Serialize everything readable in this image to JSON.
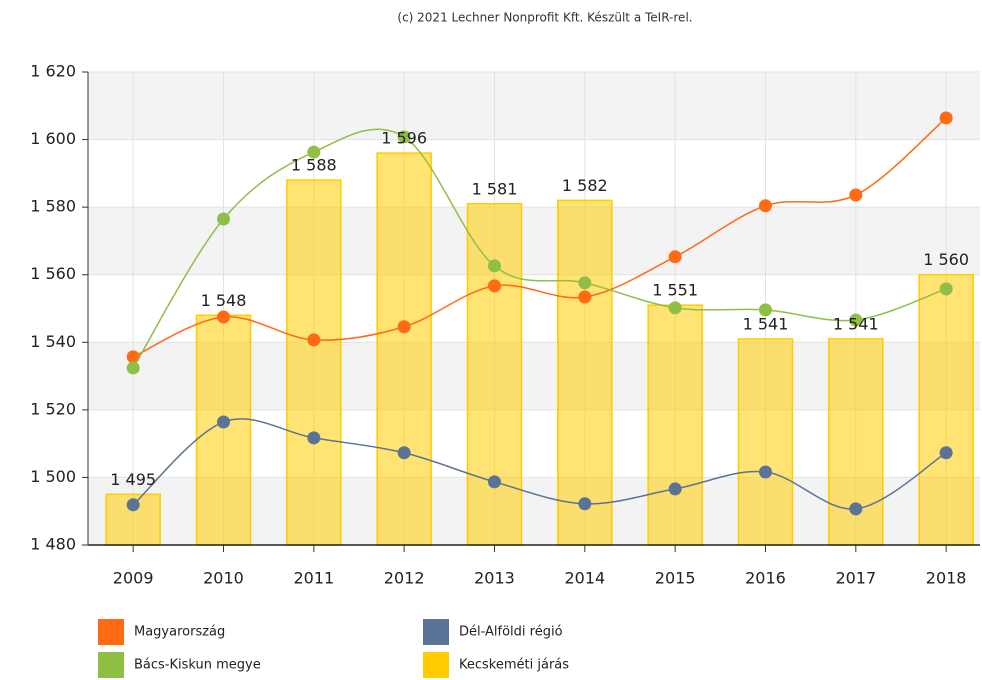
{
  "chart_data": {
    "type": "bar",
    "subtitle": "(c) 2021 Lechner Nonprofit Kft. Készült a TeIR-rel.",
    "categories": [
      "2009",
      "2010",
      "2011",
      "2012",
      "2013",
      "2014",
      "2015",
      "2016",
      "2017",
      "2018"
    ],
    "ylim": [
      1480,
      1620
    ],
    "yticks": [
      {
        "value": 1480,
        "label": "1 480"
      },
      {
        "value": 1500,
        "label": "1 500"
      },
      {
        "value": 1520,
        "label": "1 520"
      },
      {
        "value": 1540,
        "label": "1 540"
      },
      {
        "value": 1560,
        "label": "1 560"
      },
      {
        "value": 1580,
        "label": "1 580"
      },
      {
        "value": 1600,
        "label": "1 600"
      },
      {
        "value": 1620,
        "label": "1 620"
      }
    ],
    "grid": true,
    "legend": "bottom",
    "series": [
      {
        "name": "Magyarország",
        "type": "line",
        "color": "#ff6a13",
        "values": [
          1535.7,
          1547.5,
          1540.7,
          1544.6,
          1556.7,
          1553.4,
          1565.3,
          1580.4,
          1583.6,
          1606.4
        ]
      },
      {
        "name": "Dél-Alföldi régió",
        "type": "line",
        "color": "#5a7396",
        "values": [
          1491.9,
          1516.4,
          1511.7,
          1507.3,
          1498.7,
          1492.2,
          1496.6,
          1501.6,
          1490.7,
          1507.3
        ]
      },
      {
        "name": "Bács-Kiskun megye",
        "type": "line",
        "color": "#8fbf45",
        "values": [
          1532.4,
          1576.5,
          1596.3,
          1600.8,
          1562.6,
          1557.6,
          1550.2,
          1549.6,
          1546.6,
          1555.8
        ]
      },
      {
        "name": "Kecskeméti járás",
        "type": "bar",
        "color": "#ffcc00",
        "values": [
          1495,
          1548,
          1588,
          1596,
          1581,
          1582,
          1551,
          1541,
          1541,
          1560
        ],
        "value_labels": [
          "1 495",
          "1 548",
          "1 588",
          "1 596",
          "1 581",
          "1 582",
          "1 551",
          "1 541",
          "1 541",
          "1 560"
        ]
      }
    ]
  }
}
